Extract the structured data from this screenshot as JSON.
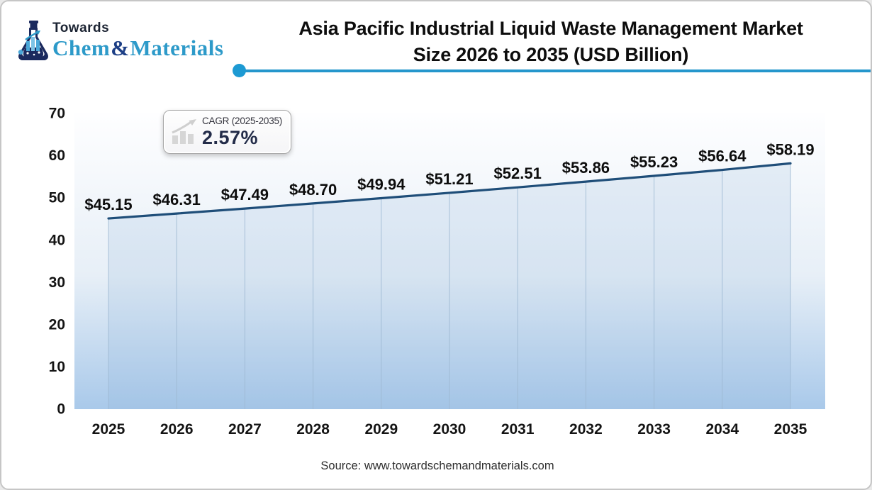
{
  "logo": {
    "towards": "Towards",
    "brand_chem": "Chem",
    "brand_amp": "&",
    "brand_materials": "Materials",
    "colors": {
      "navy": "#1b2a5e",
      "blue": "#2d9ac9",
      "light_blue": "#4aa7d8"
    }
  },
  "title": {
    "line1": "Asia Pacific Industrial Liquid Waste Management Market",
    "line2": "Size 2026 to 2035 (USD Billion)"
  },
  "divider": {
    "line_color": "#2596cc",
    "dot_color": "#1d9ad3"
  },
  "cagr_badge": {
    "icon": "growth-chart-icon",
    "label": "CAGR (2025-2035)",
    "value": "2.57%"
  },
  "source": {
    "text": "Source: www.towardschemandmaterials.com"
  },
  "chart_data": {
    "type": "area",
    "title": "Asia Pacific Industrial Liquid Waste Management Market Size 2026 to 2035 (USD Billion)",
    "categories": [
      "2025",
      "2026",
      "2027",
      "2028",
      "2029",
      "2030",
      "2031",
      "2032",
      "2033",
      "2034",
      "2035"
    ],
    "values": [
      45.15,
      46.31,
      47.49,
      48.7,
      49.94,
      51.21,
      52.51,
      53.86,
      55.23,
      56.64,
      58.19
    ],
    "labels": [
      "$45.15",
      "$46.31",
      "$47.49",
      "$48.70",
      "$49.94",
      "$51.21",
      "$52.51",
      "$53.86",
      "$55.23",
      "$56.64",
      "$58.19"
    ],
    "xlabel": "",
    "ylabel": "",
    "ylim": [
      0,
      70
    ],
    "yticks": [
      0,
      10,
      20,
      30,
      40,
      50,
      60,
      70
    ],
    "grid": "vertical-drop-lines",
    "legend": "none",
    "colors": {
      "line": "#1f4e79",
      "plot_top": "#fefeff",
      "plot_mid": "#e7eff7",
      "plot_bottom": "#a9c9ea",
      "area_tint": "rgba(140,175,215,0.18)",
      "drop_line": "#9db8d2",
      "tick_label": "#141414",
      "data_label": "#0d0d0d"
    }
  }
}
